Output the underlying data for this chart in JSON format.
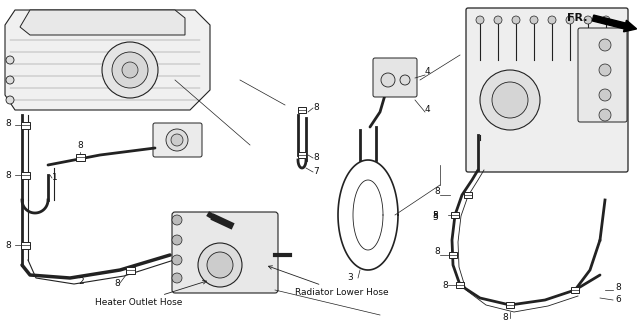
{
  "background_color": "#ffffff",
  "line_color": "#222222",
  "text_color": "#111111",
  "labels": {
    "heater_outlet_hose": "Heater Outlet Hose",
    "radiator_lower_hose": "Radiator Lower Hose",
    "fr_label": "FR."
  },
  "font_size_label": 6.5,
  "font_size_number": 6.5,
  "font_size_fr": 8,
  "figsize": [
    6.37,
    3.2
  ],
  "dpi": 100,
  "xlim": [
    0,
    637
  ],
  "ylim": [
    0,
    320
  ]
}
